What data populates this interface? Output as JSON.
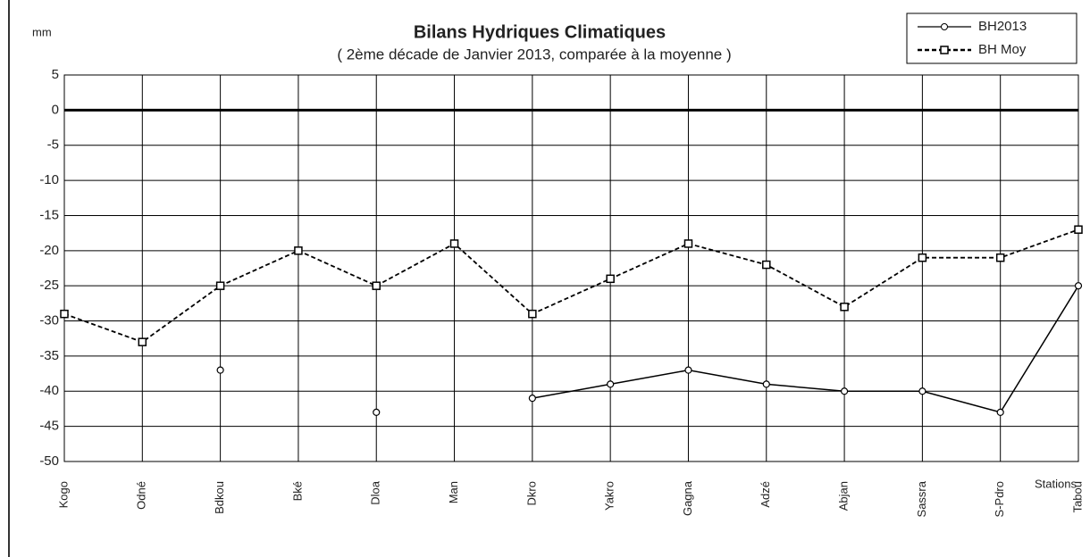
{
  "chart_data": {
    "type": "line",
    "title": "Bilans Hydriques Climatiques",
    "subtitle": "( 2ème décade de Janvier 2013, comparée à la moyenne )",
    "y_label": "mm",
    "x_label": "Stations",
    "categories": [
      "Kogo",
      "Odné",
      "Bdkou",
      "Bké",
      "Dloa",
      "Man",
      "Dkro",
      "Yakro",
      "Gagna",
      "Adzé",
      "Abjan",
      "Sassra",
      "S-Pdro",
      "Tabou"
    ],
    "series": [
      {
        "name": "BH2013",
        "color": "#000000",
        "dashed": false,
        "marker": "circle",
        "values": [
          null,
          null,
          -37,
          null,
          -43,
          null,
          -41,
          -39,
          -37,
          -39,
          -40,
          -40,
          -43,
          -25
        ]
      },
      {
        "name": "BH Moy",
        "color": "#000000",
        "dashed": true,
        "marker": "square",
        "values": [
          -29,
          -33,
          -25,
          -20,
          -25,
          -19,
          -29,
          -24,
          -19,
          -22,
          -28,
          -21,
          -21,
          -17
        ]
      }
    ],
    "ylim": [
      -50,
      5
    ],
    "yticks": [
      5,
      0,
      -5,
      -10,
      -15,
      -20,
      -25,
      -30,
      -35,
      -40,
      -45,
      -50
    ],
    "grid": true,
    "legend": "top-right"
  }
}
